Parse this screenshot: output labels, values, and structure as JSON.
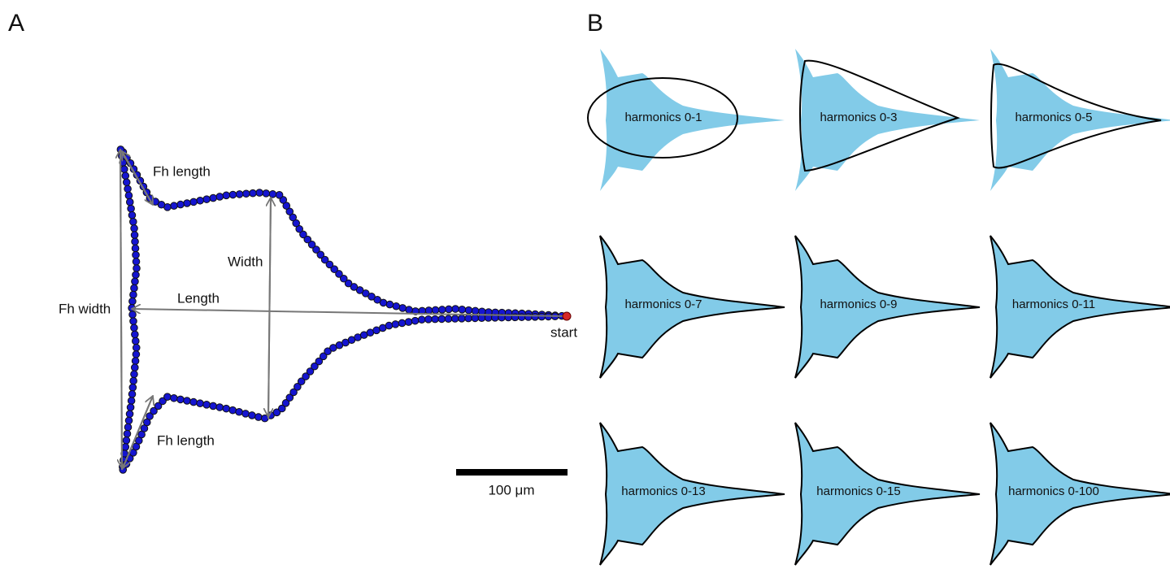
{
  "panel_a": {
    "label": "A",
    "fh_length_top": "Fh length",
    "width": "Width",
    "length": "Length",
    "fh_width": "Fh width",
    "fh_length_bottom": "Fh length",
    "start": "start",
    "scale_bar": "100 μm"
  },
  "panel_b": {
    "label": "B",
    "reconstructions": [
      "harmonics 0-1",
      "harmonics 0-3",
      "harmonics 0-5",
      "harmonics 0-7",
      "harmonics 0-9",
      "harmonics 0-11",
      "harmonics 0-13",
      "harmonics 0-15",
      "harmonics 0-100"
    ]
  }
}
